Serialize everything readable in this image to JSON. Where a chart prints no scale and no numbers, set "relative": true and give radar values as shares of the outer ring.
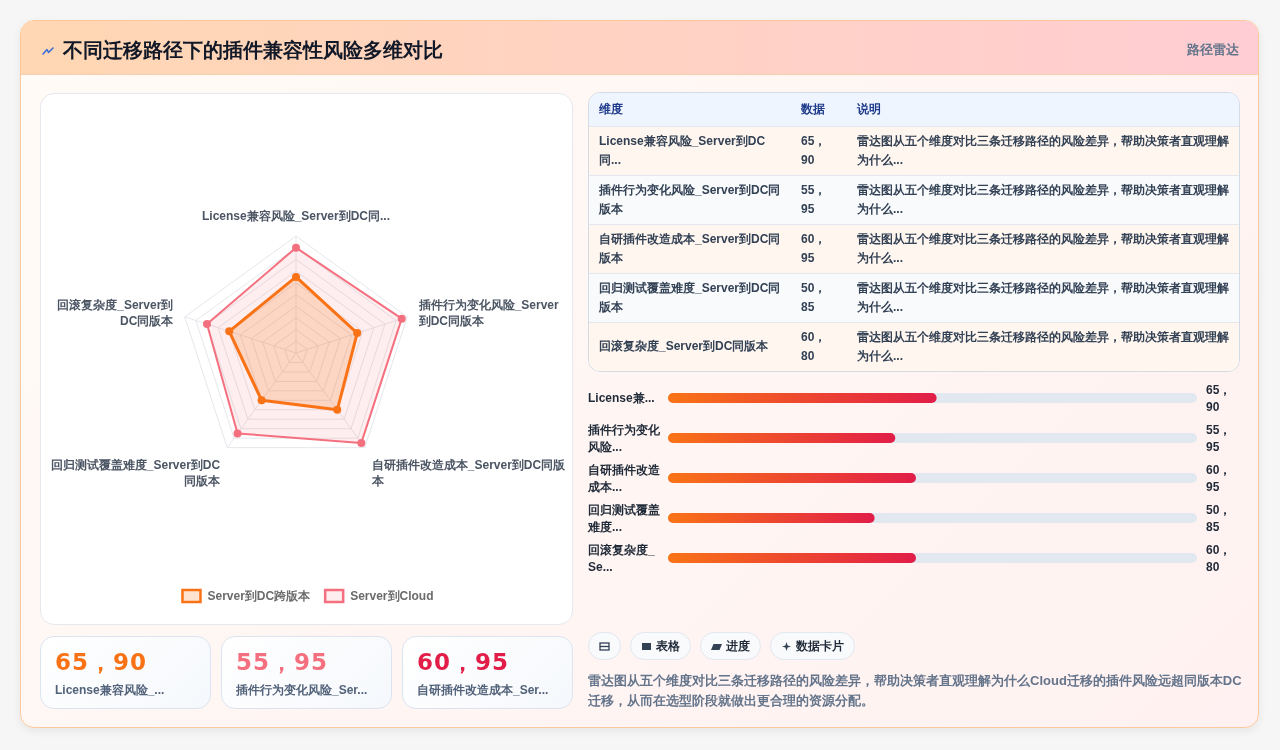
{
  "chart_data": [
    {
      "type": "radar",
      "title": "不同迁移路径下的插件兼容性风险多维对比",
      "categories": [
        "License兼容风险_Server到DC同...",
        "插件行为变化风险_Server到DC同版本",
        "自研插件改造成本_Server到DC同版本",
        "回归测试覆盖难度_Server到DC同版本",
        "回滚复杂度_Server到DC同版本"
      ],
      "relative": true,
      "marker": "circle",
      "legend": "bottom",
      "series": [
        {
          "name": "Server到DC跨版本",
          "color": "#f97316",
          "values": [
            0.65,
            0.55,
            0.6,
            0.5,
            0.6
          ]
        },
        {
          "name": "Server到Cloud",
          "color": "#f5707f",
          "values": [
            0.9,
            0.95,
            0.95,
            0.85,
            0.8
          ]
        }
      ]
    },
    {
      "type": "other",
      "subtitle": "路径雷达",
      "categories": [
        "License兼容风险_Server到DC同...",
        "插件行为变化风险_Server到DC同版本",
        "自研插件改造成本_Server到DC同版本",
        "回归测试覆盖难度_Server到DC同版本",
        "回滚复杂度_Server到DC同版本"
      ],
      "annotations": [
        "维度",
        "数据",
        "说明",
        "65，90",
        "雷达图从五个维度对比三条迁移路径的风险差异，帮助决策者直观理解为什么...",
        "55，95",
        "雷达图从五个维度对比三条迁移路径的风险差异，帮助决策者直观理解为什么...",
        "60，95",
        "雷达图从五个维度对比三条迁移路径的风险差异，帮助决策者直观理解为什么...",
        "50，85",
        "雷达图从五个维度对比三条迁移路径的风险差异，帮助决策者直观理解为什么...",
        "60，80",
        "雷达图从五个维度对比三条迁移路径的风险差异，帮助决策者直观理解为什么..."
      ]
    },
    {
      "type": "bar",
      "orientation": "horizontal",
      "categories": [
        "License兼...",
        "插件行为变化风险...",
        "自研插件改造成本...",
        "回归测试覆盖难度...",
        "回滚复杂度_Se..."
      ],
      "values": [
        65,
        55,
        60,
        50,
        60
      ],
      "value_labels": [
        "65，90",
        "55，95",
        "60，95",
        "50，85",
        "60，80"
      ],
      "color": "#e11d48",
      "xlim": [
        0,
        128
      ],
      "tick_labels": "y"
    },
    {
      "type": "other",
      "categories": [
        "License兼容风险_...",
        "插件行为变化风险_Ser...",
        "自研插件改造成本_Ser..."
      ],
      "annotations": [
        "65，90",
        "55，95",
        "60，95"
      ]
    },
    {
      "type": "other",
      "categories": [
        null,
        "表格",
        "进度",
        "数据卡片"
      ],
      "annotations": [
        "雷达图从五个维度对比三条迁移路径的风险差异，帮助决策者直观理解为什么Cloud迁移的插件风险远超同版本DC迁移，从而在选型阶段就做出更合理的资源分配。"
      ]
    }
  ]
}
